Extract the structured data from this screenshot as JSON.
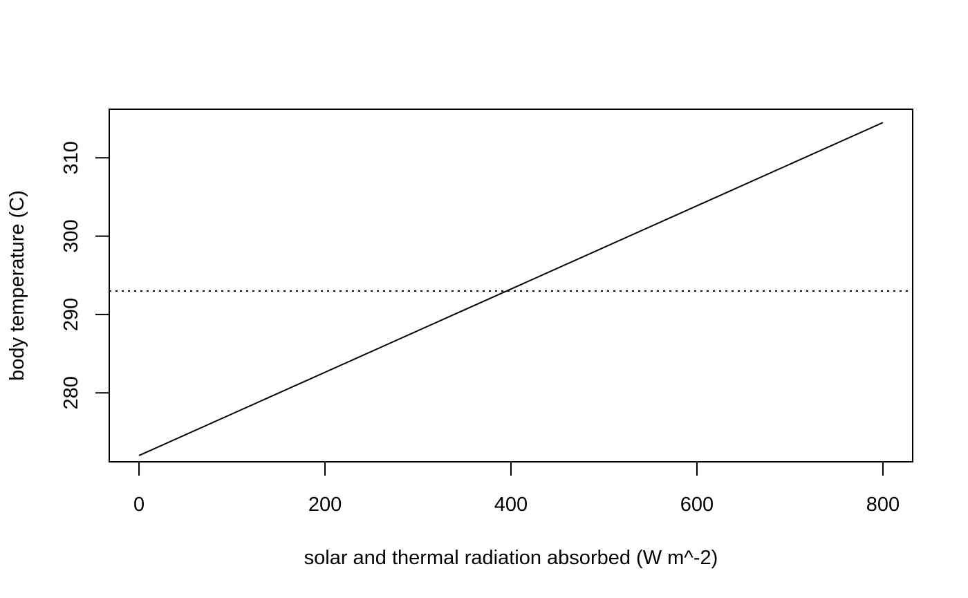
{
  "chart_data": {
    "type": "line",
    "title": "",
    "xlabel": "solar and thermal radiation absorbed (W m^-2)",
    "ylabel": "body temperature (C)",
    "xlim": [
      -32,
      832
    ],
    "ylim": [
      271.2,
      316.2
    ],
    "x_ticks": [
      0,
      200,
      400,
      600,
      800
    ],
    "x_tick_labels": [
      "0",
      "200",
      "400",
      "600",
      "800"
    ],
    "y_ticks": [
      280,
      290,
      300,
      310
    ],
    "y_tick_labels": [
      "280",
      "290",
      "300",
      "310"
    ],
    "grid": false,
    "series": [
      {
        "x": [
          0,
          800
        ],
        "y": [
          272.0,
          314.5
        ],
        "line_style": "solid",
        "color": "#000000"
      }
    ],
    "reference_lines": [
      {
        "orientation": "horizontal",
        "y": 293.0,
        "line_style": "dotted",
        "color": "#000000"
      }
    ]
  }
}
